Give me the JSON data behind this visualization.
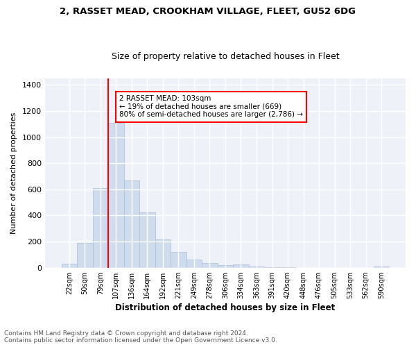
{
  "title": "2, RASSET MEAD, CROOKHAM VILLAGE, FLEET, GU52 6DG",
  "subtitle": "Size of property relative to detached houses in Fleet",
  "xlabel": "Distribution of detached houses by size in Fleet",
  "ylabel": "Number of detached properties",
  "footnote1": "Contains HM Land Registry data © Crown copyright and database right 2024.",
  "footnote2": "Contains public sector information licensed under the Open Government Licence v3.0.",
  "annotation_line1": "2 RASSET MEAD: 103sqm",
  "annotation_line2": "← 19% of detached houses are smaller (669)",
  "annotation_line3": "80% of semi-detached houses are larger (2,786) →",
  "bar_color": "#cfdcee",
  "bar_edge_color": "#a8bfd8",
  "vline_color": "red",
  "categories": [
    "22sqm",
    "50sqm",
    "79sqm",
    "107sqm",
    "136sqm",
    "164sqm",
    "192sqm",
    "221sqm",
    "249sqm",
    "278sqm",
    "306sqm",
    "334sqm",
    "363sqm",
    "391sqm",
    "420sqm",
    "448sqm",
    "476sqm",
    "505sqm",
    "533sqm",
    "562sqm",
    "590sqm"
  ],
  "values": [
    30,
    190,
    610,
    1110,
    670,
    425,
    215,
    120,
    65,
    35,
    20,
    25,
    10,
    3,
    2,
    1,
    0,
    0,
    0,
    0,
    10
  ],
  "ylim": [
    0,
    1450
  ],
  "yticks": [
    0,
    200,
    400,
    600,
    800,
    1000,
    1200,
    1400
  ],
  "bg_color": "#eef2f8",
  "vline_index": 3.0
}
